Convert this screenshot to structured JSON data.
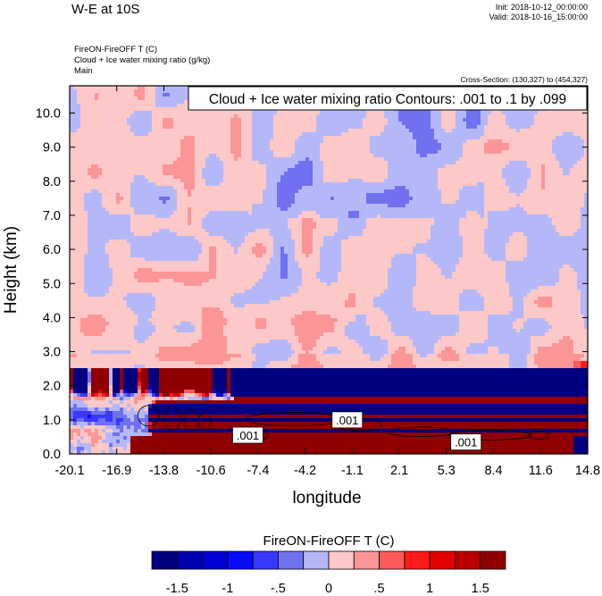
{
  "header": {
    "title": "W-E at 10S",
    "init": "Init: 2018-10-12_00:00:00",
    "valid": "Valid: 2018-10-16_15:00:00",
    "var_lines": [
      "FireON-FireOFF T   (C)",
      "Cloud + Ice water mixing ratio   (g/kg)",
      "Main"
    ],
    "cross_section": "Cross-Section: (130,327) to (454,327)"
  },
  "chart_data": {
    "type": "heatmap",
    "title": "Cloud + Ice water mixing ratio Contours: .001 to .1 by .099",
    "xlabel": "longitude",
    "ylabel": "Height (km)",
    "x_ticks": [
      "-20.1",
      "-16.9",
      "-13.8",
      "-10.6",
      "-7.4",
      "-4.2",
      "-1.1",
      "2.1",
      "5.3",
      "8.4",
      "11.6",
      "14.8"
    ],
    "y_ticks": [
      "0.0",
      "1.0",
      "2.0",
      "3.0",
      "4.0",
      "5.0",
      "6.0",
      "7.0",
      "8.0",
      "9.0",
      "10.0"
    ],
    "xlim": [
      -20.1,
      14.8
    ],
    "ylim": [
      0,
      10.8
    ],
    "contour_labels": [
      {
        "text": ".001",
        "x": -8.1,
        "y": 0.55
      },
      {
        "text": ".001",
        "x": -1.4,
        "y": 1.0
      },
      {
        "text": ".001",
        "x": 6.6,
        "y": 0.35
      }
    ],
    "colorbar": {
      "title": "FireON-FireOFF T  (C)",
      "tick_labels": [
        "-1.5",
        "-1",
        "-.5",
        "0",
        ".5",
        "1",
        "1.5"
      ],
      "tick_values": [
        -1.5,
        -1,
        -0.5,
        0,
        0.5,
        1,
        1.5
      ],
      "levels": [
        -1.75,
        -1.5,
        -1.25,
        -1,
        -0.75,
        -0.5,
        -0.25,
        0,
        0.25,
        0.5,
        0.75,
        1,
        1.25,
        1.5,
        1.75
      ],
      "colors": [
        "#000080",
        "#0000b0",
        "#0000d8",
        "#0a0aff",
        "#3838ff",
        "#7070f0",
        "#b4b8f8",
        "#fcc8c8",
        "#fc9696",
        "#fc5a5a",
        "#ff1a1a",
        "#e00000",
        "#b80000",
        "#900000"
      ]
    }
  }
}
